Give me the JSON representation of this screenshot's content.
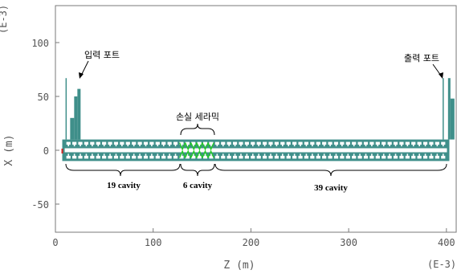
{
  "axes": {
    "exponent_y": "(E-3)",
    "exponent_x": "(E-3)",
    "xlabel": "Z (m)",
    "ylabel": "X (m)",
    "x_ticks": [
      0,
      100,
      200,
      300,
      400
    ],
    "y_ticks": [
      100,
      50,
      0,
      -50
    ],
    "x_range": [
      0,
      410
    ],
    "y_range": [
      -80,
      135
    ]
  },
  "annotations": {
    "input_port": "입력 포트",
    "output_port": "출력 포트",
    "lossy_ceramic": "손실 세라믹",
    "section_left": "19 cavity",
    "section_mid": "6 cavity",
    "section_right": "39 cavity"
  },
  "structure": {
    "z_start": 7,
    "z_end": 403,
    "x_top": 10,
    "x_bottom": -10,
    "ceramic_z": [
      127,
      162
    ],
    "cavity_counts": [
      19,
      6,
      39
    ],
    "input_port_z": 20,
    "output_port_z": 400
  },
  "colors": {
    "structure": "#3f8f8a",
    "ceramic": "#22cc22",
    "axis": "#7a7a7a",
    "port_marker": "#d02020"
  }
}
